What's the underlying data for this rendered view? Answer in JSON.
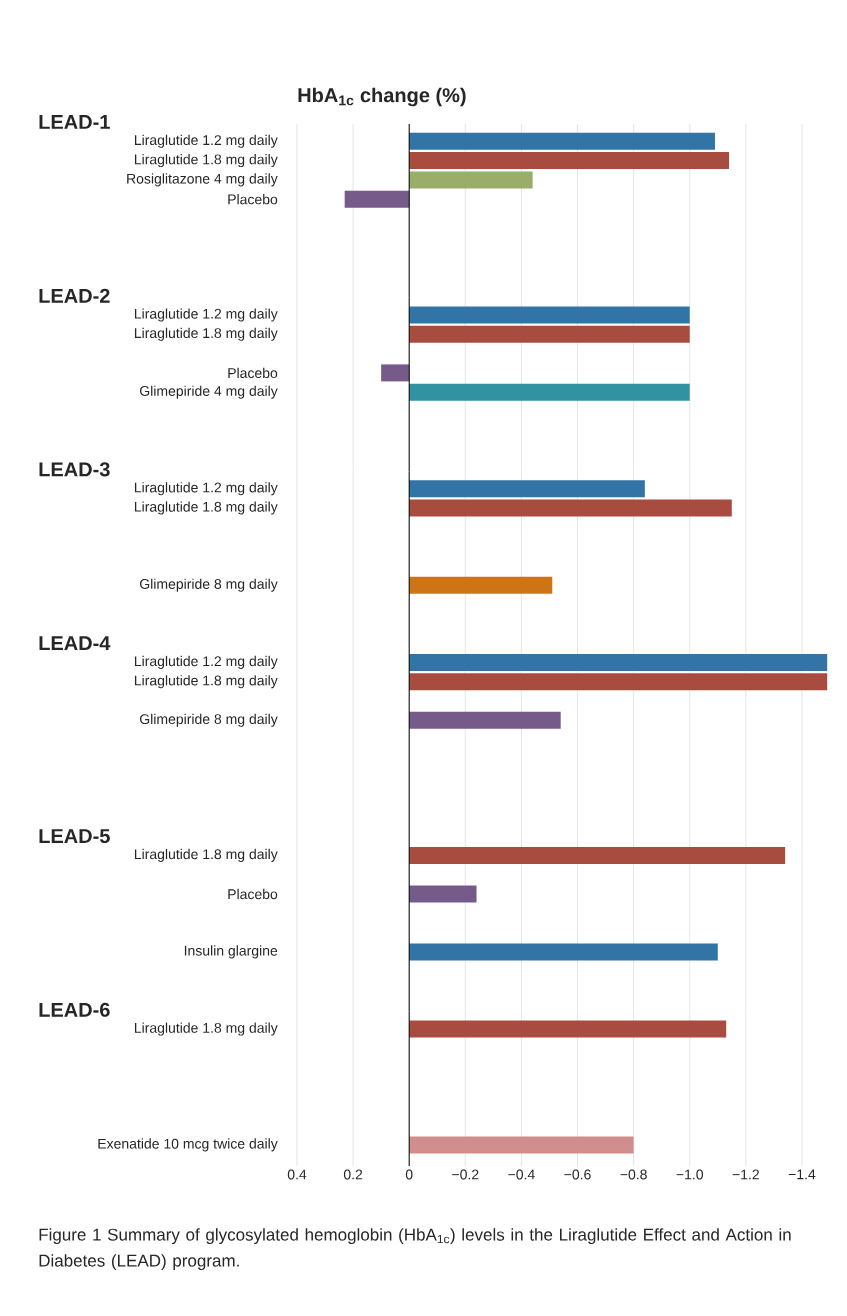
{
  "chart_data": [
    {
      "type": "bar",
      "orientation": "horizontal",
      "title": "LEAD-1",
      "xlabel": "HbA$_{1c}$ change (%)",
      "categories": [
        "Liraglutide 1.2 mg daily",
        "Liraglutide 1.8 mg daily",
        "Rosiglitazone 4 mg daily",
        "Placebo"
      ],
      "values": [
        -1.09,
        -1.14,
        -0.44,
        0.23
      ],
      "colors": [
        "#3274a6",
        "#a84c3f",
        "#9aae67",
        "#755a8a"
      ],
      "xlim": [
        0.4,
        -1.4
      ],
      "xticks": [
        0.4,
        0.2,
        0,
        -0.2,
        -0.4,
        -0.6,
        -0.8,
        -1.0,
        -1.2,
        -1.4
      ],
      "grid": "x",
      "tick_labels": "y"
    },
    {
      "type": "bar",
      "orientation": "horizontal",
      "title": "LEAD-2",
      "categories": [
        "Liraglutide 1.2 mg daily",
        "Liraglutide 1.8 mg daily",
        null,
        "Placebo",
        "Glimepiride 4 mg daily"
      ],
      "values": [
        -1.0,
        -1.0,
        null,
        0.1,
        -1.0
      ],
      "colors": [
        "#3274a6",
        "#a84c3f",
        null,
        "#755a8a",
        "#3193a2"
      ],
      "xlim": [
        0.4,
        -1.4
      ],
      "xticks": [
        0.4,
        0.2,
        0,
        -0.2,
        -0.4,
        -0.6,
        -0.8,
        -1.0,
        -1.2,
        -1.4
      ],
      "grid": "x",
      "tick_labels": "y"
    },
    {
      "type": "bar",
      "orientation": "horizontal",
      "title": "LEAD-3",
      "categories": [
        "Liraglutide 1.2 mg daily",
        "Liraglutide 1.8 mg daily",
        null,
        null,
        null,
        "Glimepiride 8 mg daily"
      ],
      "values": [
        -0.84,
        -1.15,
        null,
        null,
        null,
        -0.51
      ],
      "colors": [
        "#3274a6",
        "#a84c3f",
        null,
        null,
        null,
        "#cf7317"
      ],
      "xlim": [
        0.4,
        -1.4
      ],
      "xticks": [
        0.4,
        0.2,
        0,
        -0.2,
        -0.4,
        -0.6,
        -0.8,
        -1.0,
        -1.2,
        -1.4
      ],
      "grid": "x",
      "tick_labels": "y"
    },
    {
      "type": "bar",
      "orientation": "horizontal",
      "title": "LEAD-4",
      "categories": [
        "Liraglutide 1.2 mg daily",
        "Liraglutide 1.8 mg daily",
        null,
        "Glimepiride 8 mg daily"
      ],
      "values": [
        -1.49,
        -1.49,
        null,
        -0.54
      ],
      "colors": [
        "#3274a6",
        "#a84c3f",
        null,
        "#755a8a"
      ],
      "xlim": [
        0.4,
        -1.5
      ],
      "xticks": [
        0.4,
        0.2,
        0,
        -0.2,
        -0.4,
        -0.6,
        -0.8,
        -1.0,
        -1.2,
        -1.4
      ],
      "grid": "x",
      "tick_labels": "y"
    },
    {
      "type": "bar",
      "orientation": "horizontal",
      "title": "LEAD-5",
      "categories": [
        "Liraglutide 1.8 mg daily",
        null,
        "Placebo",
        null,
        null,
        "Insulin glargine"
      ],
      "values": [
        -1.34,
        null,
        -0.24,
        null,
        null,
        -1.1
      ],
      "colors": [
        "#a84c3f",
        null,
        "#755a8a",
        null,
        null,
        "#3274a6"
      ],
      "xlim": [
        0.4,
        -1.4
      ],
      "xticks": [
        0.4,
        0.2,
        0,
        -0.2,
        -0.4,
        -0.6,
        -0.8,
        -1.0,
        -1.2,
        -1.4
      ],
      "grid": "x",
      "tick_labels": "y"
    },
    {
      "type": "bar",
      "orientation": "horizontal",
      "title": "LEAD-6",
      "categories": [
        "Liraglutide 1.8 mg daily",
        null,
        null,
        null,
        null,
        null,
        "Exenatide 10 mcg twice daily"
      ],
      "values": [
        -1.13,
        null,
        null,
        null,
        null,
        null,
        -0.8
      ],
      "colors": [
        "#a84c3f",
        null,
        null,
        null,
        null,
        null,
        "#d28d8d"
      ],
      "xlim": [
        0.4,
        -1.4
      ],
      "xticks": [
        {
          "value": 0.4,
          "label": "0.4"
        },
        {
          "value": 0.2,
          "label": "0.2"
        },
        {
          "value": 0,
          "label": "0"
        },
        {
          "value": -0.2,
          "label": "−0.2"
        },
        {
          "value": -0.4,
          "label": "−0.4"
        },
        {
          "value": -0.6,
          "label": "−0.6"
        },
        {
          "value": -0.8,
          "label": "−0.8"
        },
        {
          "value": -1.0,
          "label": "−1.0"
        },
        {
          "value": -1.2,
          "label": "−1.2"
        },
        {
          "value": -1.4,
          "label": "−1.4"
        }
      ],
      "grid": "x",
      "annotations": [
        "Figure 1  Summary of glycosylated hemoglobin (HbA$_{1c}$) levels in the Liraglutide Effect and Action in Diabetes (LEAD) program."
      ]
    }
  ]
}
